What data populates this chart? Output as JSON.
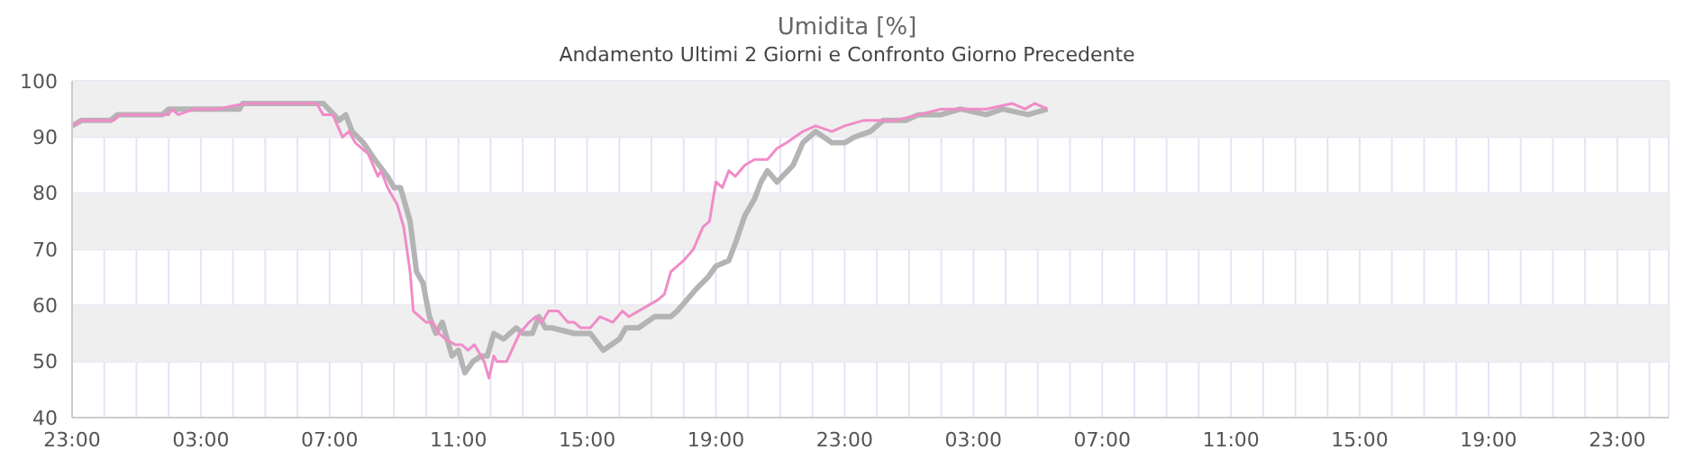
{
  "chart_data": {
    "type": "line",
    "title": "Umidita [%]",
    "subtitle": "Andamento Ultimi 2 Giorni e Confronto Giorno Precedente",
    "xlim": [
      "--01-01T23:00",
      "--01-04T00:36"
    ],
    "ylim": [
      40,
      100
    ],
    "yticks": [
      40,
      50,
      60,
      70,
      80,
      90,
      100
    ],
    "xticks": [
      {
        "value": "--01-01T23:00",
        "label": "23:00"
      },
      {
        "value": "--01-02T00:00",
        "label": null
      },
      {
        "value": "--01-02T01:00",
        "label": null
      },
      {
        "value": "--01-02T02:00",
        "label": null
      },
      {
        "value": "--01-02T03:00",
        "label": "03:00"
      },
      {
        "value": "--01-02T04:00",
        "label": null
      },
      {
        "value": "--01-02T05:00",
        "label": null
      },
      {
        "value": "--01-02T06:00",
        "label": null
      },
      {
        "value": "--01-02T07:00",
        "label": "07:00"
      },
      {
        "value": "--01-02T08:00",
        "label": null
      },
      {
        "value": "--01-02T09:00",
        "label": null
      },
      {
        "value": "--01-02T10:00",
        "label": null
      },
      {
        "value": "--01-02T11:00",
        "label": "11:00"
      },
      {
        "value": "--01-02T12:00",
        "label": null
      },
      {
        "value": "--01-02T13:00",
        "label": null
      },
      {
        "value": "--01-02T14:00",
        "label": null
      },
      {
        "value": "--01-02T15:00",
        "label": "15:00"
      },
      {
        "value": "--01-02T16:00",
        "label": null
      },
      {
        "value": "--01-02T17:00",
        "label": null
      },
      {
        "value": "--01-02T18:00",
        "label": null
      },
      {
        "value": "--01-02T19:00",
        "label": "19:00"
      },
      {
        "value": "--01-02T20:00",
        "label": null
      },
      {
        "value": "--01-02T21:00",
        "label": null
      },
      {
        "value": "--01-02T22:00",
        "label": null
      },
      {
        "value": "--01-02T23:00",
        "label": "23:00"
      },
      {
        "value": "--01-03T00:00",
        "label": null
      },
      {
        "value": "--01-03T01:00",
        "label": null
      },
      {
        "value": "--01-03T02:00",
        "label": null
      },
      {
        "value": "--01-03T03:00",
        "label": "03:00"
      },
      {
        "value": "--01-03T04:00",
        "label": null
      },
      {
        "value": "--01-03T05:00",
        "label": null
      },
      {
        "value": "--01-03T06:00",
        "label": null
      },
      {
        "value": "--01-03T07:00",
        "label": "07:00"
      },
      {
        "value": "--01-03T08:00",
        "label": null
      },
      {
        "value": "--01-03T09:00",
        "label": null
      },
      {
        "value": "--01-03T10:00",
        "label": null
      },
      {
        "value": "--01-03T11:00",
        "label": "11:00"
      },
      {
        "value": "--01-03T12:00",
        "label": null
      },
      {
        "value": "--01-03T13:00",
        "label": null
      },
      {
        "value": "--01-03T14:00",
        "label": null
      },
      {
        "value": "--01-03T15:00",
        "label": "15:00"
      },
      {
        "value": "--01-03T16:00",
        "label": null
      },
      {
        "value": "--01-03T17:00",
        "label": null
      },
      {
        "value": "--01-03T18:00",
        "label": null
      },
      {
        "value": "--01-03T19:00",
        "label": "19:00"
      },
      {
        "value": "--01-03T20:00",
        "label": null
      },
      {
        "value": "--01-03T21:00",
        "label": null
      },
      {
        "value": "--01-03T22:00",
        "label": null
      },
      {
        "value": "--01-03T23:00",
        "label": "23:00"
      },
      {
        "value": "--01-04T00:00",
        "label": null
      }
    ],
    "grid": true,
    "marker": "none",
    "bands": [
      {
        "axis": "y",
        "from": 90,
        "to": 100,
        "color": "#efefef"
      },
      {
        "axis": "y",
        "from": 70,
        "to": 80,
        "color": "#efefef"
      },
      {
        "axis": "y",
        "from": 50,
        "to": 60,
        "color": "#efefef"
      }
    ],
    "series": [
      {
        "color": "#f08cc8",
        "x": [
          "--01-01T23:00",
          "--01-01T23:18",
          "--01-02T00:18",
          "--01-02T00:30",
          "--01-02T02:00",
          "--01-02T02:06",
          "--01-02T02:18",
          "--01-02T02:48",
          "--01-02T03:30",
          "--01-02T04:24",
          "--01-02T06:36",
          "--01-02T06:48",
          "--01-02T07:06",
          "--01-02T07:24",
          "--01-02T07:36",
          "--01-02T07:48",
          "--01-02T08:12",
          "--01-02T08:30",
          "--01-02T08:36",
          "--01-02T08:48",
          "--01-02T09:06",
          "--01-02T09:18",
          "--01-02T09:30",
          "--01-02T09:36",
          "--01-02T10:00",
          "--01-02T10:12",
          "--01-02T10:24",
          "--01-02T10:36",
          "--01-02T10:54",
          "--01-02T11:06",
          "--01-02T11:18",
          "--01-02T11:30",
          "--01-02T11:48",
          "--01-02T11:57",
          "--01-02T12:06",
          "--01-02T12:12",
          "--01-02T12:30",
          "--01-02T12:54",
          "--01-02T13:12",
          "--01-02T13:24",
          "--01-02T13:36",
          "--01-02T13:48",
          "--01-02T14:06",
          "--01-02T14:24",
          "--01-02T14:36",
          "--01-02T14:48",
          "--01-02T15:06",
          "--01-02T15:24",
          "--01-02T15:48",
          "--01-02T16:06",
          "--01-02T16:18",
          "--01-02T16:54",
          "--01-02T17:12",
          "--01-02T17:24",
          "--01-02T17:36",
          "--01-02T18:00",
          "--01-02T18:18",
          "--01-02T18:36",
          "--01-02T18:48",
          "--01-02T19:00",
          "--01-02T19:12",
          "--01-02T19:24",
          "--01-02T19:36",
          "--01-02T19:54",
          "--01-02T20:12",
          "--01-02T20:36",
          "--01-02T20:54",
          "--01-02T21:12",
          "--01-02T21:42",
          "--01-02T22:06",
          "--01-02T22:36",
          "--01-02T23:00",
          "--01-02T23:36",
          "--01-03T00:36",
          "--01-03T01:18",
          "--01-03T02:00",
          "--01-03T03:24",
          "--01-03T04:12",
          "--01-03T04:36",
          "--01-03T04:54",
          "--01-03T05:18"
        ],
        "values": [
          92,
          93,
          93,
          94,
          94,
          95,
          94,
          95,
          95,
          96,
          96,
          94,
          94,
          90,
          91,
          89,
          87,
          83,
          84,
          81,
          78,
          74,
          66,
          59,
          57,
          57,
          55,
          54,
          53,
          53,
          52,
          53,
          50,
          47,
          51,
          50,
          50,
          55,
          57,
          58,
          57,
          59,
          59,
          57,
          57,
          56,
          56,
          58,
          57,
          59,
          58,
          60,
          61,
          62,
          66,
          68,
          70,
          74,
          75,
          82,
          81,
          84,
          83,
          85,
          86,
          86,
          88,
          89,
          91,
          92,
          91,
          92,
          93,
          93,
          94,
          95,
          95,
          96,
          95,
          96,
          95
        ]
      },
      {
        "color": "#b4b4b4",
        "x": [
          "--01-01T23:00",
          "--01-01T23:18",
          "--01-02T00:12",
          "--01-02T00:24",
          "--01-02T01:48",
          "--01-02T02:00",
          "--01-02T04:12",
          "--01-02T04:18",
          "--01-02T06:48",
          "--01-02T07:18",
          "--01-02T07:30",
          "--01-02T07:42",
          "--01-02T08:03",
          "--01-02T08:24",
          "--01-02T08:48",
          "--01-02T09:00",
          "--01-02T09:12",
          "--01-02T09:30",
          "--01-02T09:42",
          "--01-02T09:54",
          "--01-02T10:06",
          "--01-02T10:18",
          "--01-02T10:30",
          "--01-02T10:48",
          "--01-02T11:00",
          "--01-02T11:12",
          "--01-02T11:27",
          "--01-02T11:42",
          "--01-02T11:54",
          "--01-02T12:06",
          "--01-02T12:24",
          "--01-02T12:48",
          "--01-02T13:00",
          "--01-02T13:18",
          "--01-02T13:30",
          "--01-02T13:42",
          "--01-02T13:54",
          "--01-02T14:36",
          "--01-02T15:06",
          "--01-02T15:30",
          "--01-02T15:45",
          "--01-02T16:00",
          "--01-02T16:12",
          "--01-02T16:36",
          "--01-02T17:06",
          "--01-02T17:36",
          "--01-02T17:48",
          "--01-02T18:06",
          "--01-02T18:24",
          "--01-02T18:45",
          "--01-02T19:00",
          "--01-02T19:24",
          "--01-02T19:36",
          "--01-02T19:54",
          "--01-02T20:12",
          "--01-02T20:24",
          "--01-02T20:36",
          "--01-02T20:54",
          "--01-02T21:24",
          "--01-02T21:42",
          "--01-02T22:06",
          "--01-02T22:36",
          "--01-02T23:00",
          "--01-02T23:18",
          "--01-02T23:48",
          "--01-03T00:12",
          "--01-03T00:54",
          "--01-03T01:18",
          "--01-03T02:00",
          "--01-03T02:36",
          "--01-03T03:24",
          "--01-03T03:54",
          "--01-03T04:42",
          "--01-03T05:18"
        ],
        "values": [
          92,
          93,
          93,
          94,
          94,
          95,
          95,
          96,
          96,
          93,
          94,
          91,
          89,
          86,
          83,
          81,
          81,
          75,
          66,
          64,
          58,
          55,
          57,
          51,
          52,
          48,
          50,
          51,
          51,
          55,
          54,
          56,
          55,
          55,
          58,
          56,
          56,
          55,
          55,
          52,
          53,
          54,
          56,
          56,
          58,
          58,
          59,
          61,
          63,
          65,
          67,
          68,
          71,
          76,
          79,
          82,
          84,
          82,
          85,
          89,
          91,
          89,
          89,
          90,
          91,
          93,
          93,
          94,
          94,
          95,
          94,
          95,
          94,
          95
        ]
      }
    ]
  }
}
